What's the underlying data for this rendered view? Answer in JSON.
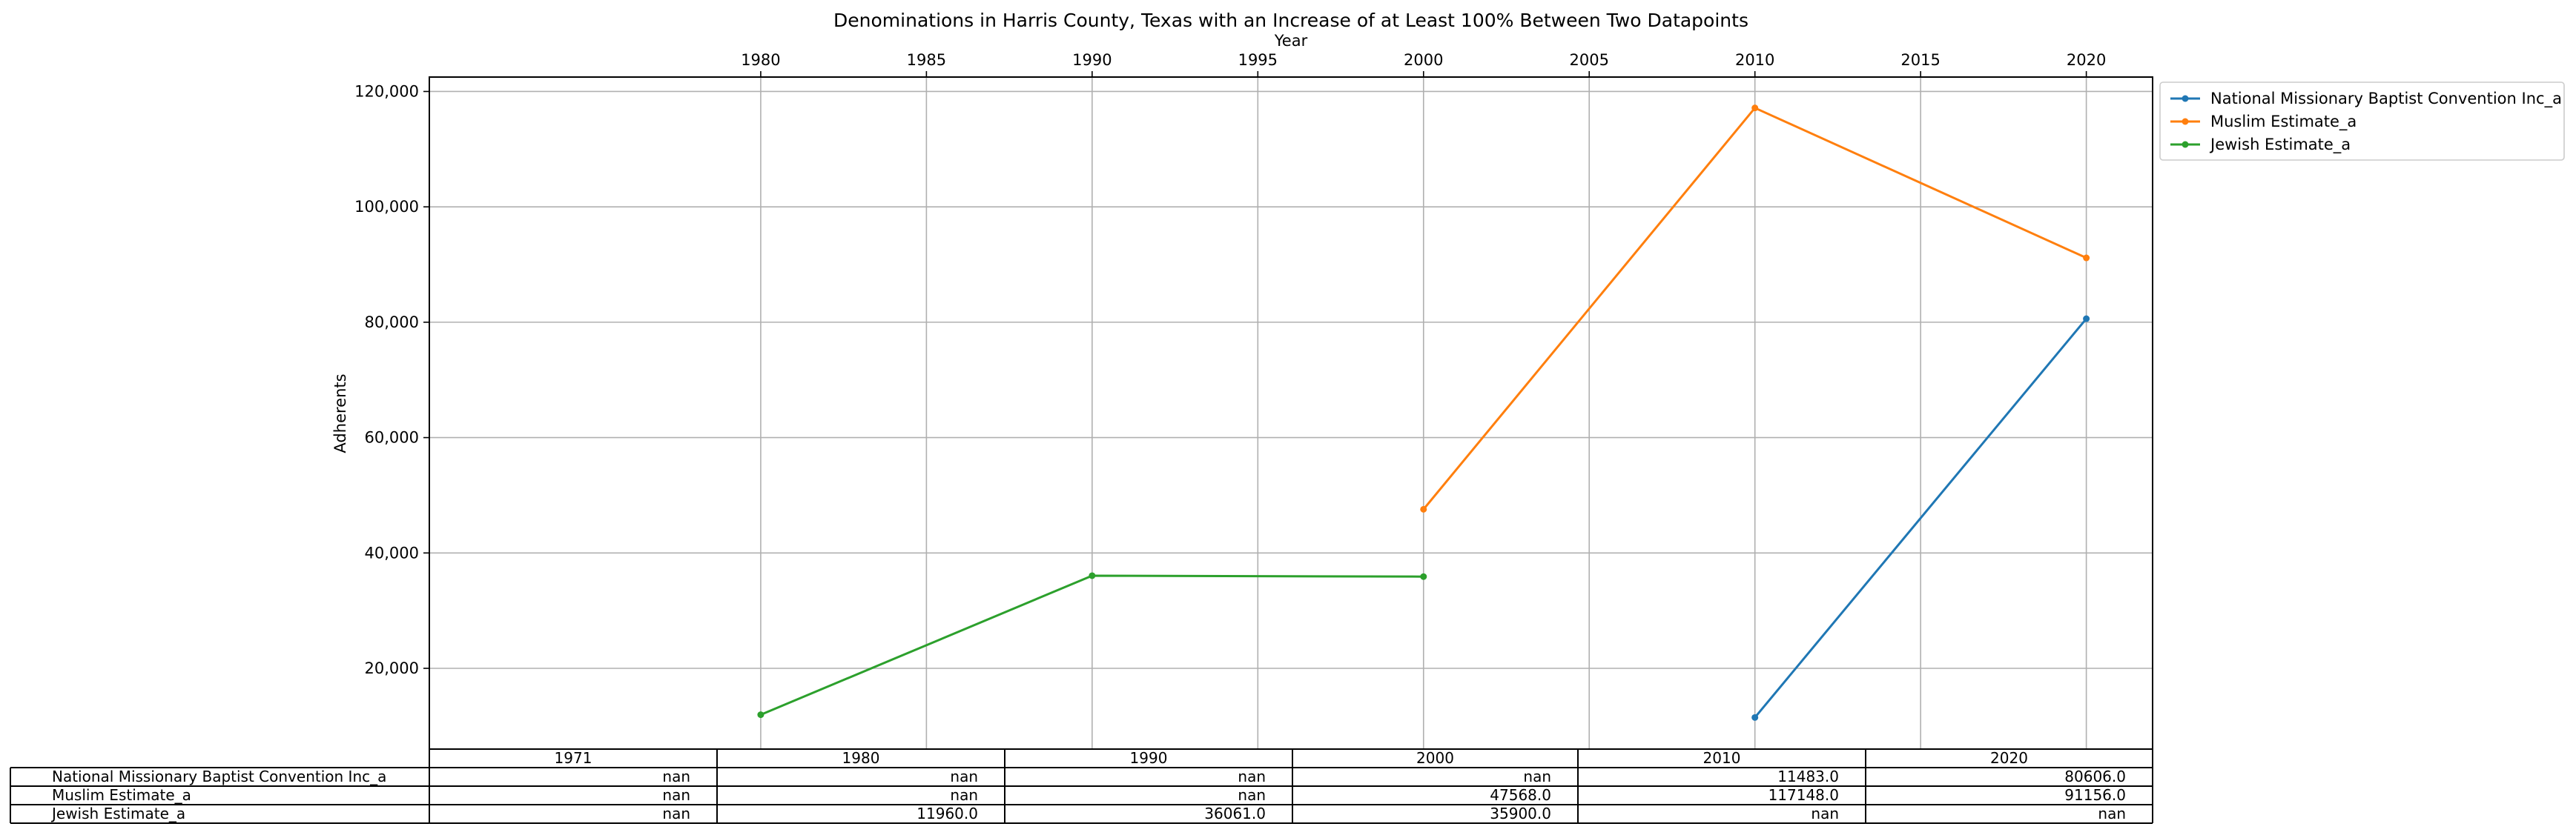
{
  "chart_data": {
    "type": "line",
    "title": "Denominations in Harris County, Texas with an Increase of at Least 100% Between Two Datapoints",
    "xlabel": "Year",
    "ylabel": "Adherents",
    "xlim": [
      1970,
      2022
    ],
    "ylim": [
      6000,
      122500
    ],
    "x_ticks": [
      1980,
      1985,
      1990,
      1995,
      2000,
      2005,
      2010,
      2015,
      2020
    ],
    "x_tick_labels": [
      "1980",
      "1985",
      "1990",
      "1995",
      "2000",
      "2005",
      "2010",
      "2015",
      "2020"
    ],
    "y_ticks": [
      20000,
      40000,
      60000,
      80000,
      100000,
      120000
    ],
    "y_tick_labels": [
      "20,000",
      "40,000",
      "60,000",
      "80,000",
      "100,000",
      "120,000"
    ],
    "grid": true,
    "legend_position": "outside-top-right",
    "series": [
      {
        "name": "National Missionary Baptist Convention Inc_a",
        "color": "#1f77b4",
        "points": [
          [
            2010,
            11483
          ],
          [
            2020,
            80606
          ]
        ]
      },
      {
        "name": "Muslim Estimate_a",
        "color": "#ff7f0e",
        "points": [
          [
            2000,
            47568
          ],
          [
            2010,
            117148
          ],
          [
            2020,
            91156
          ]
        ]
      },
      {
        "name": "Jewish Estimate_a",
        "color": "#2ca02c",
        "points": [
          [
            1980,
            11960
          ],
          [
            1990,
            36061
          ],
          [
            2000,
            35900
          ]
        ]
      }
    ],
    "table": {
      "columns": [
        "1971",
        "1980",
        "1990",
        "2000",
        "2010",
        "2020"
      ],
      "rows": [
        {
          "label": "National Missionary Baptist Convention Inc_a",
          "cells": [
            "nan",
            "nan",
            "nan",
            "nan",
            "11483.0",
            "80606.0"
          ]
        },
        {
          "label": "Muslim Estimate_a",
          "cells": [
            "nan",
            "nan",
            "nan",
            "47568.0",
            "117148.0",
            "91156.0"
          ]
        },
        {
          "label": "Jewish Estimate_a",
          "cells": [
            "nan",
            "11960.0",
            "36061.0",
            "35900.0",
            "nan",
            "nan"
          ]
        }
      ]
    }
  }
}
